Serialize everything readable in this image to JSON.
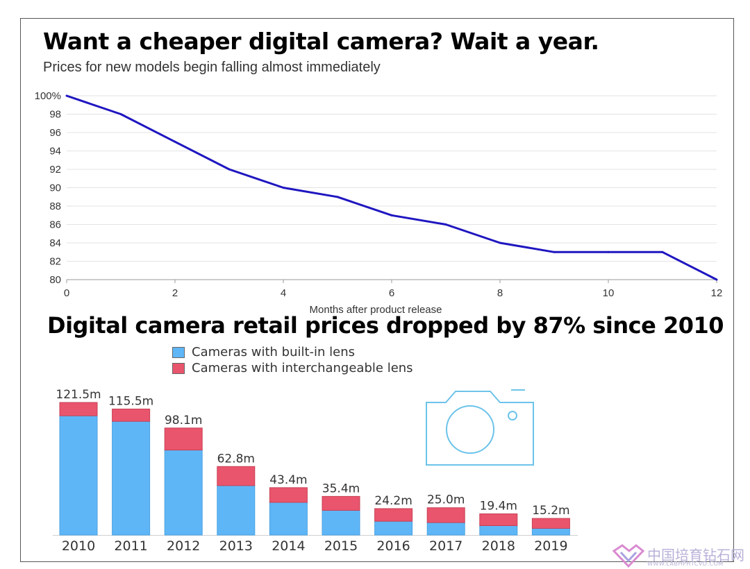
{
  "colors": {
    "line": "#1f16c0",
    "builtin": "#5fb6f6",
    "interchangeable": "#e9556c",
    "grid": "#e3e3e3",
    "icon": "#6cc3ea"
  },
  "chart_data": [
    {
      "type": "line",
      "title": "Want a cheaper digital camera? Wait a year.",
      "subtitle": "Prices for new models begin falling almost immediately",
      "xlabel": "Months after product release",
      "ylabel": "",
      "x": [
        0,
        1,
        2,
        3,
        4,
        5,
        6,
        7,
        8,
        9,
        10,
        11,
        12
      ],
      "values": [
        100,
        98,
        95,
        92,
        90,
        89,
        87,
        86,
        84,
        83,
        83,
        83,
        80
      ],
      "xlim": [
        0,
        12
      ],
      "ylim": [
        80,
        100
      ],
      "xticks": [
        "0",
        "2",
        "4",
        "6",
        "8",
        "10",
        "12"
      ],
      "yticks": [
        "100%",
        "98",
        "96",
        "94",
        "92",
        "90",
        "88",
        "86",
        "84",
        "82",
        "80"
      ],
      "grid": true
    },
    {
      "type": "bar",
      "stacked": true,
      "title": "Digital camera retail prices dropped by 87% since 2010",
      "categories": [
        "2010",
        "2011",
        "2012",
        "2013",
        "2014",
        "2015",
        "2016",
        "2017",
        "2018",
        "2019"
      ],
      "totals": [
        121.5,
        115.5,
        98.1,
        62.8,
        43.4,
        35.4,
        24.2,
        25.0,
        19.4,
        15.2
      ],
      "total_labels": [
        "121.5m",
        "115.5m",
        "98.1m",
        "62.8m",
        "43.4m",
        "35.4m",
        "24.2m",
        "25.0m",
        "19.4m",
        "15.2m"
      ],
      "series": [
        {
          "name": "Cameras with built-in lens",
          "values": [
            109.3,
            104.2,
            77.9,
            45.3,
            29.9,
            22.6,
            12.6,
            11.4,
            8.6,
            6.1
          ]
        },
        {
          "name": "Cameras with interchangeable lens",
          "values": [
            12.2,
            11.3,
            20.2,
            17.5,
            13.5,
            12.8,
            11.6,
            13.6,
            10.8,
            9.1
          ]
        }
      ],
      "ylim": [
        0,
        121.5
      ],
      "legend": "top"
    }
  ],
  "watermark": {
    "text": "中国培育钻石网",
    "url": "WWW.LABHPHTCVD.COM"
  }
}
